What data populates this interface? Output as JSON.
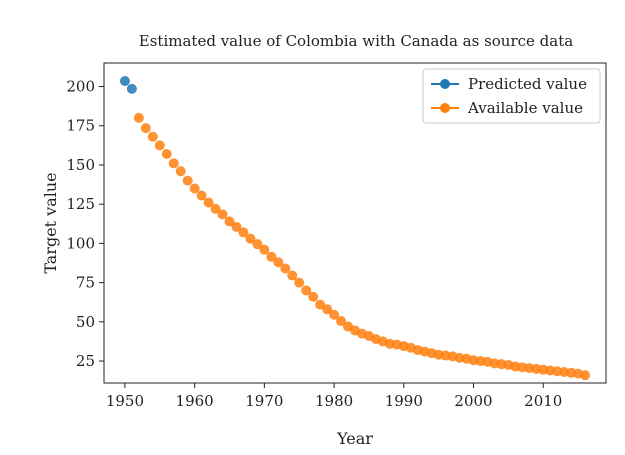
{
  "chart_data": {
    "type": "scatter",
    "title": "Estimated value of Colombia with Canada as source data",
    "xlabel": "Year",
    "ylabel": "Target value",
    "xlim": [
      1947,
      2019
    ],
    "ylim": [
      11,
      215
    ],
    "xticks": [
      1950,
      1960,
      1970,
      1980,
      1990,
      2000,
      2010
    ],
    "yticks": [
      25,
      50,
      75,
      100,
      125,
      150,
      175,
      200
    ],
    "grid": false,
    "legend_position": "top-right",
    "series": [
      {
        "name": "Predicted value",
        "color": "#1f77b4",
        "x": [
          1950,
          1951
        ],
        "y": [
          203.5,
          198.5
        ]
      },
      {
        "name": "Available value",
        "color": "#ff7f0e",
        "x": [
          1952,
          1953,
          1954,
          1955,
          1956,
          1957,
          1958,
          1959,
          1960,
          1961,
          1962,
          1963,
          1964,
          1965,
          1966,
          1967,
          1968,
          1969,
          1970,
          1971,
          1972,
          1973,
          1974,
          1975,
          1976,
          1977,
          1978,
          1979,
          1980,
          1981,
          1982,
          1983,
          1984,
          1985,
          1986,
          1987,
          1988,
          1989,
          1990,
          1991,
          1992,
          1993,
          1994,
          1995,
          1996,
          1997,
          1998,
          1999,
          2000,
          2001,
          2002,
          2003,
          2004,
          2005,
          2006,
          2007,
          2008,
          2009,
          2010,
          2011,
          2012,
          2013,
          2014,
          2015,
          2016
        ],
        "y": [
          180,
          173.5,
          168,
          162.5,
          157,
          151,
          146,
          140,
          135,
          130.5,
          126,
          122,
          118.5,
          114,
          110.5,
          107,
          103,
          99.5,
          96,
          91.5,
          88,
          84,
          79.5,
          75,
          70,
          66,
          61,
          58,
          54.5,
          50.5,
          47,
          44.5,
          42.5,
          41,
          39,
          37.5,
          36,
          35.5,
          34.5,
          33.5,
          32,
          31,
          30,
          29,
          28.5,
          28,
          27,
          26.5,
          25.5,
          25,
          24.5,
          23.5,
          23,
          22.5,
          21.5,
          21,
          20.5,
          20,
          19.5,
          19,
          18.5,
          18,
          17.5,
          17,
          16
        ]
      }
    ]
  }
}
